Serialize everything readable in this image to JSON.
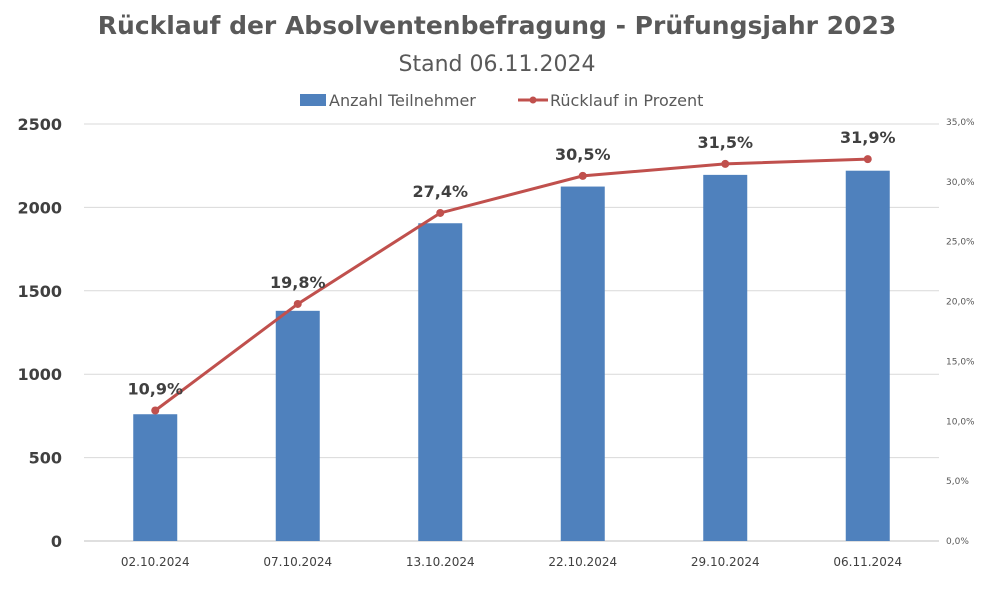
{
  "chart_data": {
    "type": "bar+line",
    "title": "Rücklauf der Absolventenbefragung - Prüfungsjahr 2023",
    "subtitle": "Stand 06.11.2024",
    "categories": [
      "02.10.2024",
      "07.10.2024",
      "13.10.2024",
      "22.10.2024",
      "29.10.2024",
      "06.11.2024"
    ],
    "series": [
      {
        "name": "Anzahl Teilnehmer",
        "type": "bar",
        "axis": "left",
        "color": "#4f81bd",
        "values": [
          760,
          1380,
          1905,
          2125,
          2195,
          2220
        ]
      },
      {
        "name": "Rücklauf in Prozent",
        "type": "line",
        "axis": "right",
        "color": "#c0504d",
        "values": [
          10.9,
          19.8,
          27.4,
          30.5,
          31.5,
          31.9
        ],
        "labels": [
          "10,9%",
          "19,8%",
          "27,4%",
          "30,5%",
          "31,5%",
          "31,9%"
        ]
      }
    ],
    "y_left": {
      "ylim": [
        0,
        2500
      ],
      "ticks": [
        0,
        500,
        1000,
        1500,
        2000,
        2500
      ]
    },
    "y_right": {
      "ylim": [
        0,
        35
      ],
      "ticks": [
        "0,0%",
        "5,0%",
        "10,0%",
        "15,0%",
        "20,0%",
        "25,0%",
        "30,0%",
        "35,0%"
      ]
    },
    "grid": true,
    "legend": "top-center"
  }
}
